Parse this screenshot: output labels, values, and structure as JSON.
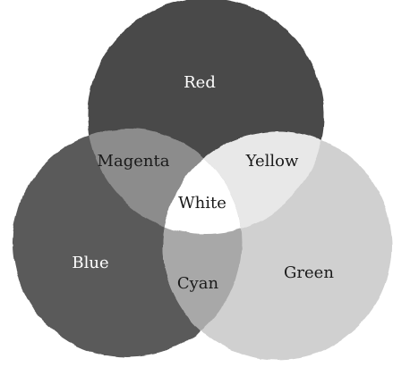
{
  "diagram": {
    "colors": {
      "red_region": "#4a4a4a",
      "blue_region": "#5a5a5a",
      "green_region": "#d0d0d0",
      "magenta_overlap": "#8c8c8c",
      "yellow_overlap": "#e8e8e8",
      "cyan_overlap": "#a8a8a8",
      "white_center": "#ffffff",
      "dark_label": "#ffffff",
      "light_label": "#1a1a1a"
    },
    "labels": {
      "red": "Red",
      "blue": "Blue",
      "green": "Green",
      "magenta": "Magenta",
      "yellow": "Yellow",
      "cyan": "Cyan",
      "white": "White"
    }
  }
}
